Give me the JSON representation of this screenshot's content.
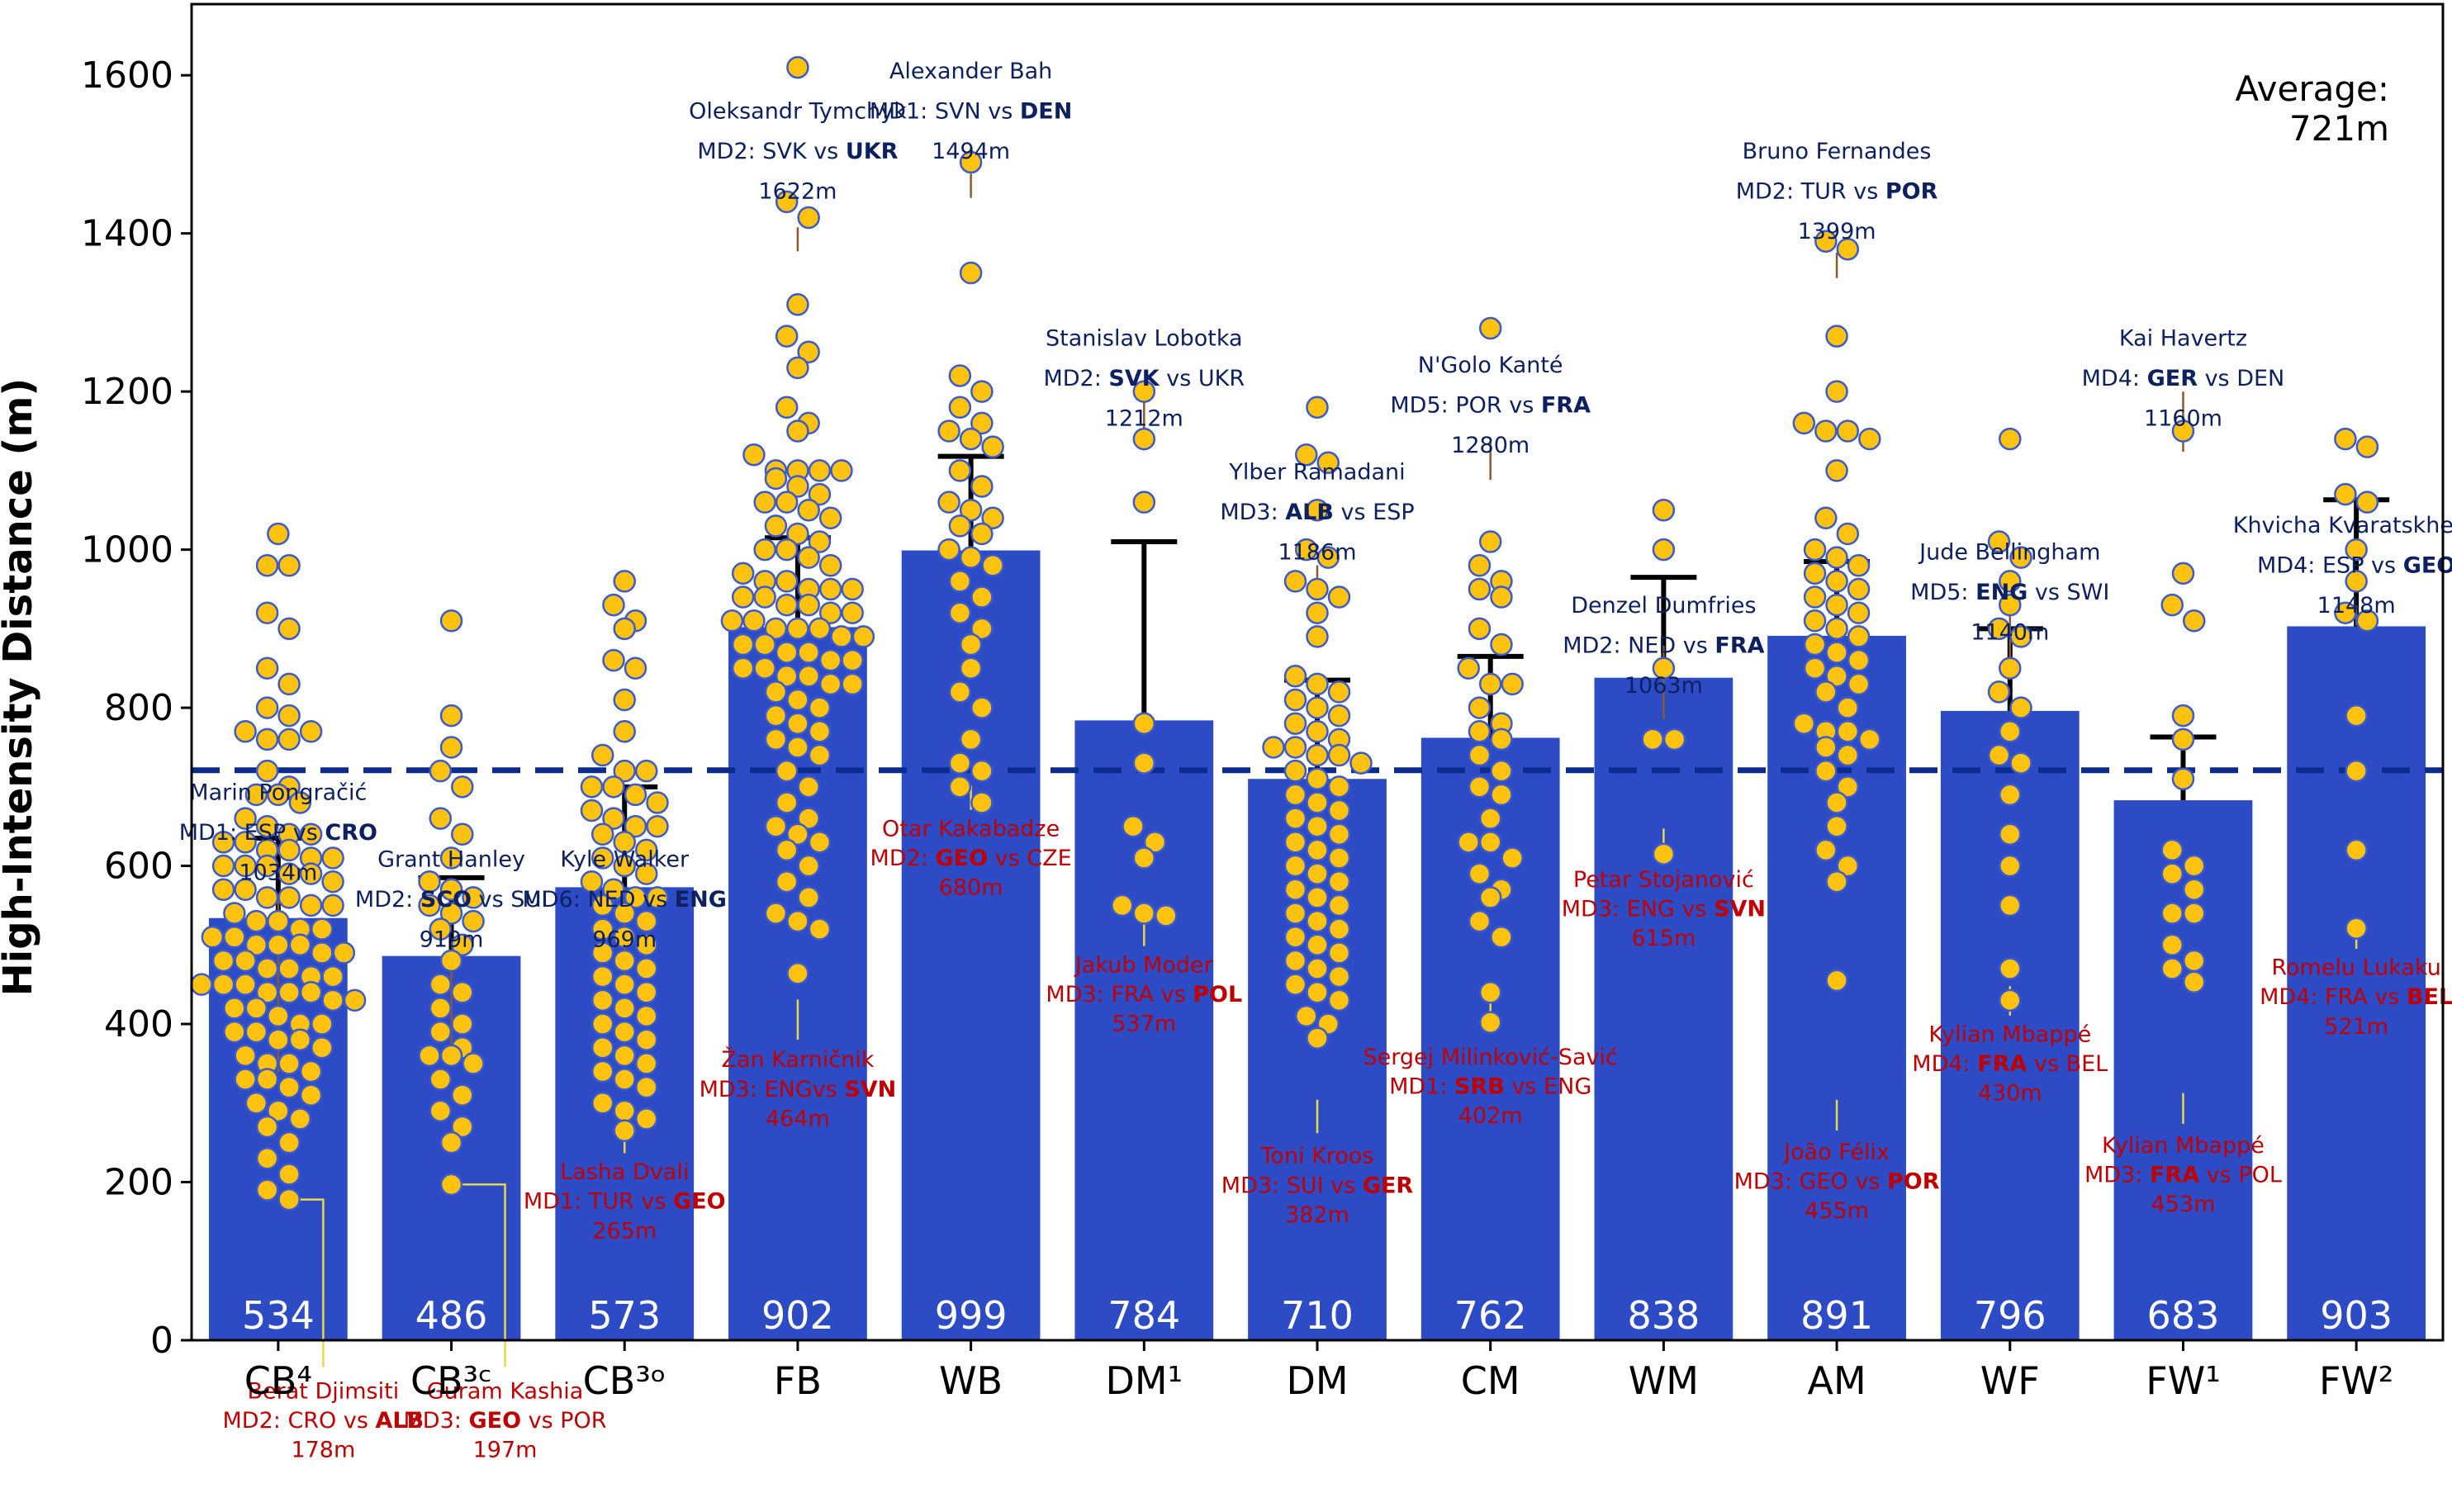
{
  "chart_data": {
    "type": "bar",
    "ylabel": "High-Intensity Distance (m)",
    "ylim": [
      0,
      1690
    ],
    "yticks": [
      0,
      200,
      400,
      600,
      800,
      1000,
      1200,
      1400,
      1600
    ],
    "average": {
      "value": 721,
      "line1": "Average:",
      "line2": "721m"
    },
    "categories": [
      {
        "label": "CB⁴",
        "value": 534,
        "value_label": "534",
        "upper": 635,
        "points": [
          1020,
          980,
          980,
          920,
          900,
          850,
          830,
          800,
          790,
          770,
          760,
          760,
          770,
          720,
          700,
          690,
          690,
          680,
          660,
          650,
          640,
          640,
          630,
          630,
          620,
          620,
          610,
          610,
          600,
          600,
          600,
          590,
          590,
          580,
          570,
          570,
          560,
          560,
          550,
          550,
          540,
          530,
          530,
          520,
          520,
          510,
          510,
          500,
          500,
          500,
          490,
          490,
          480,
          480,
          470,
          470,
          460,
          460,
          450,
          450,
          450,
          440,
          440,
          440,
          430,
          430,
          420,
          420,
          410,
          400,
          400,
          390,
          390,
          380,
          380,
          370,
          360,
          350,
          350,
          340,
          330,
          330,
          320,
          310,
          300,
          290,
          280,
          270,
          250,
          230,
          210,
          190,
          178
        ],
        "max": {
          "name": "Marin Pongračić",
          "prefix": "MD1: ESP vs ",
          "bold": "CRO",
          "suffix": "",
          "value": "1034m"
        },
        "min": {
          "name": "Berat Djimsiti",
          "prefix": "MD2: CRO vs ",
          "bold": "ALB",
          "suffix": "",
          "value": "178m"
        }
      },
      {
        "label": "CB³ᶜ",
        "value": 486,
        "value_label": "486",
        "upper": 585,
        "points": [
          910,
          790,
          750,
          720,
          700,
          660,
          640,
          610,
          580,
          570,
          560,
          550,
          540,
          530,
          520,
          500,
          480,
          450,
          440,
          420,
          400,
          390,
          370,
          360,
          360,
          350,
          330,
          310,
          290,
          270,
          250,
          197
        ],
        "max": {
          "name": "Grant Hanley",
          "prefix": "MD2: ",
          "bold": "SCO",
          "suffix": " vs SUI",
          "value": "919m"
        },
        "min": {
          "name": "Guram Kashia",
          "prefix": "MD3: ",
          "bold": "GEO",
          "suffix": " vs POR",
          "value": "197m"
        }
      },
      {
        "label": "CB³ᵒ",
        "value": 573,
        "value_label": "573",
        "upper": 700,
        "points": [
          960,
          930,
          910,
          900,
          860,
          850,
          810,
          770,
          740,
          720,
          720,
          700,
          700,
          690,
          680,
          670,
          660,
          650,
          650,
          640,
          630,
          620,
          610,
          600,
          590,
          580,
          570,
          560,
          560,
          550,
          540,
          530,
          520,
          510,
          500,
          490,
          480,
          470,
          460,
          450,
          440,
          430,
          420,
          410,
          400,
          390,
          380,
          370,
          360,
          350,
          340,
          330,
          320,
          300,
          290,
          280,
          265
        ],
        "max": {
          "name": "Kyle Walker",
          "prefix": "MD6: NED vs ",
          "bold": "ENG",
          "suffix": "",
          "value": "969m"
        },
        "min": {
          "name": "Lasha Dvali",
          "prefix": "MD1: TUR vs ",
          "bold": "GEO",
          "suffix": "",
          "value": "265m"
        }
      },
      {
        "label": "FB",
        "value": 902,
        "value_label": "902",
        "upper": 1015,
        "points": [
          1610,
          1440,
          1420,
          1310,
          1270,
          1250,
          1230,
          1180,
          1160,
          1150,
          1120,
          1100,
          1100,
          1100,
          1100,
          1090,
          1080,
          1070,
          1060,
          1060,
          1050,
          1040,
          1030,
          1020,
          1010,
          1000,
          1000,
          990,
          980,
          970,
          960,
          960,
          950,
          950,
          950,
          940,
          940,
          930,
          930,
          920,
          920,
          910,
          910,
          900,
          900,
          900,
          890,
          890,
          880,
          880,
          870,
          870,
          860,
          860,
          850,
          850,
          840,
          840,
          830,
          830,
          820,
          810,
          800,
          790,
          780,
          770,
          760,
          750,
          740,
          720,
          700,
          680,
          660,
          650,
          640,
          630,
          620,
          600,
          580,
          560,
          540,
          530,
          520,
          464
        ],
        "max": {
          "name": "Oleksandr Tymchyk",
          "prefix": "MD2: SVK vs ",
          "bold": "UKR",
          "suffix": "",
          "value": "1622m"
        },
        "min": {
          "name": "Žan Karničnik",
          "prefix": "MD3: ENGvs ",
          "bold": "SVN",
          "suffix": "",
          "value": "464m"
        }
      },
      {
        "label": "WB",
        "value": 999,
        "value_label": "999",
        "upper": 1118,
        "points": [
          1490,
          1350,
          1220,
          1200,
          1180,
          1160,
          1150,
          1140,
          1130,
          1100,
          1080,
          1060,
          1050,
          1040,
          1030,
          1020,
          1000,
          990,
          980,
          960,
          940,
          920,
          900,
          880,
          850,
          820,
          800,
          760,
          730,
          720,
          700,
          680
        ],
        "max": {
          "name": "Alexander Bah",
          "prefix": "MD1: SVN vs ",
          "bold": "DEN",
          "suffix": "",
          "value": "1494m"
        },
        "min": {
          "name": "Otar Kakabadze",
          "prefix": "MD2: ",
          "bold": "GEO",
          "suffix": " vs CZE",
          "value": "680m"
        }
      },
      {
        "label": "DM¹",
        "value": 784,
        "value_label": "784",
        "upper": 1010,
        "points": [
          1200,
          1140,
          1060,
          780,
          730,
          650,
          630,
          610,
          550,
          540,
          537
        ],
        "max": {
          "name": "Stanislav Lobotka",
          "prefix": "MD2: ",
          "bold": "SVK",
          "suffix": " vs UKR",
          "value": "1212m"
        },
        "min": {
          "name": "Jakub Moder",
          "prefix": "MD3: FRA vs ",
          "bold": "POL",
          "suffix": "",
          "value": "537m"
        }
      },
      {
        "label": "DM",
        "value": 710,
        "value_label": "710",
        "upper": 835,
        "points": [
          1180,
          1120,
          1110,
          1050,
          1000,
          990,
          960,
          950,
          940,
          920,
          890,
          840,
          830,
          820,
          810,
          800,
          790,
          780,
          770,
          760,
          750,
          750,
          740,
          740,
          730,
          720,
          710,
          700,
          690,
          680,
          670,
          660,
          650,
          640,
          630,
          620,
          610,
          600,
          590,
          580,
          570,
          560,
          550,
          540,
          530,
          520,
          510,
          500,
          490,
          480,
          470,
          460,
          450,
          440,
          430,
          410,
          400,
          382
        ],
        "max": {
          "name": "Ylber Ramadani",
          "prefix": "MD3: ",
          "bold": "ALB",
          "suffix": " vs ESP",
          "value": "1186m"
        },
        "min": {
          "name": "Toni Kroos",
          "prefix": "MD3: SUI vs ",
          "bold": "GER",
          "suffix": "",
          "value": "382m"
        }
      },
      {
        "label": "CM",
        "value": 762,
        "value_label": "762",
        "upper": 865,
        "points": [
          1280,
          1010,
          980,
          960,
          950,
          940,
          900,
          880,
          850,
          830,
          830,
          800,
          780,
          770,
          760,
          740,
          720,
          700,
          690,
          660,
          630,
          630,
          610,
          590,
          570,
          560,
          530,
          510,
          440,
          402
        ],
        "max": {
          "name": "N'Golo Kanté",
          "prefix": "MD5: POR vs ",
          "bold": "FRA",
          "suffix": "",
          "value": "1280m"
        },
        "min": {
          "name": "Sergej Milinković-Savić",
          "prefix": "MD1: ",
          "bold": "SRB",
          "suffix": " vs ENG",
          "value": "402m"
        }
      },
      {
        "label": "WM",
        "value": 838,
        "value_label": "838",
        "upper": 965,
        "points": [
          1050,
          1000,
          850,
          760,
          760,
          615
        ],
        "max": {
          "name": "Denzel Dumfries",
          "prefix": "MD2: NED vs ",
          "bold": "FRA",
          "suffix": "",
          "value": "1063m"
        },
        "min": {
          "name": "Petar Stojanović",
          "prefix": "MD3: ENG vs ",
          "bold": "SVN",
          "suffix": "",
          "value": "615m"
        }
      },
      {
        "label": "AM",
        "value": 891,
        "value_label": "891",
        "upper": 985,
        "points": [
          1390,
          1380,
          1270,
          1200,
          1160,
          1150,
          1150,
          1140,
          1100,
          1040,
          1020,
          1000,
          990,
          980,
          970,
          960,
          950,
          940,
          930,
          920,
          910,
          900,
          890,
          880,
          870,
          860,
          850,
          840,
          830,
          820,
          800,
          780,
          770,
          770,
          760,
          750,
          740,
          720,
          700,
          680,
          650,
          620,
          600,
          580,
          455
        ],
        "max": {
          "name": "Bruno Fernandes",
          "prefix": "MD2: TUR vs ",
          "bold": "POR",
          "suffix": "",
          "value": "1399m"
        },
        "min": {
          "name": "João Félix",
          "prefix": "MD3: GEO vs ",
          "bold": "POR",
          "suffix": "",
          "value": "455m"
        }
      },
      {
        "label": "WF",
        "value": 796,
        "value_label": "796",
        "upper": 900,
        "points": [
          1140,
          1010,
          990,
          960,
          930,
          900,
          890,
          850,
          820,
          800,
          770,
          740,
          730,
          690,
          640,
          600,
          550,
          470,
          430
        ],
        "max": {
          "name": "Jude Bellingham",
          "prefix": "MD5: ",
          "bold": "ENG",
          "suffix": " vs SWI",
          "value": "1140m"
        },
        "min": {
          "name": "Kylian Mbappé",
          "prefix": "MD4: ",
          "bold": "FRA",
          "suffix": " vs BEL",
          "value": "430m"
        }
      },
      {
        "label": "FW¹",
        "value": 683,
        "value_label": "683",
        "upper": 763,
        "points": [
          1150,
          970,
          930,
          910,
          790,
          760,
          710,
          620,
          600,
          590,
          570,
          540,
          540,
          500,
          480,
          470,
          453
        ],
        "max": {
          "name": "Kai Havertz",
          "prefix": "MD4: ",
          "bold": "GER",
          "suffix": " vs DEN",
          "value": "1160m"
        },
        "min": {
          "name": "Kylian Mbappé",
          "prefix": "MD3: ",
          "bold": "FRA",
          "suffix": " vs POL",
          "value": "453m"
        }
      },
      {
        "label": "FW²",
        "value": 903,
        "value_label": "903",
        "upper": 1063,
        "points": [
          1140,
          1130,
          1070,
          1060,
          1000,
          960,
          920,
          910,
          790,
          720,
          620,
          521
        ],
        "max": {
          "name": "Khvicha Kvaratskhelia",
          "prefix": "MD4: ESP vs ",
          "bold": "GEO",
          "suffix": "",
          "value": "1148m"
        },
        "min": {
          "name": "Romelu Lukaku",
          "prefix": "MD4: FRA vs ",
          "bold": "BEL",
          "suffix": "",
          "value": "521m"
        }
      }
    ]
  },
  "colors": {
    "bar": "#2c4bc4",
    "point_fill": "#ffc20e",
    "point_stroke": "#3a5bd0",
    "avg_line": "#0b2c8c",
    "max_text": "#0d2060",
    "min_text": "#c00000",
    "max_leader": "#8b5a2b",
    "min_leader": "#e8d84a",
    "err": "#000000"
  }
}
